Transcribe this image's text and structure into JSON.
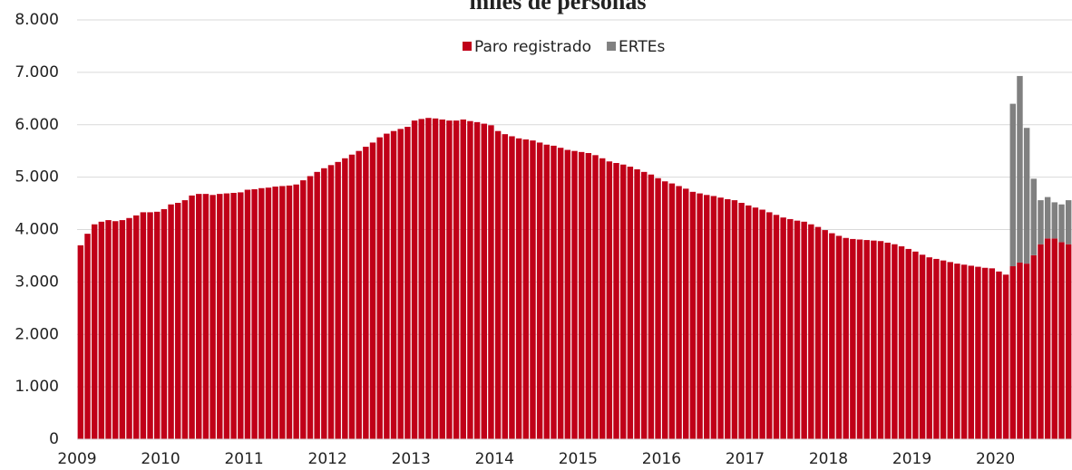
{
  "chart_data": {
    "type": "bar",
    "stacked": true,
    "title": "miles de personas",
    "categories": [
      "2009",
      null,
      null,
      null,
      null,
      null,
      null,
      null,
      null,
      null,
      null,
      null,
      "2010",
      null,
      null,
      null,
      null,
      null,
      null,
      null,
      null,
      null,
      null,
      null,
      "2011",
      null,
      null,
      null,
      null,
      null,
      null,
      null,
      null,
      null,
      null,
      null,
      "2012",
      null,
      null,
      null,
      null,
      null,
      null,
      null,
      null,
      null,
      null,
      null,
      "2013",
      null,
      null,
      null,
      null,
      null,
      null,
      null,
      null,
      null,
      null,
      null,
      "2014",
      null,
      null,
      null,
      null,
      null,
      null,
      null,
      null,
      null,
      null,
      null,
      "2015",
      null,
      null,
      null,
      null,
      null,
      null,
      null,
      null,
      null,
      null,
      null,
      "2016",
      null,
      null,
      null,
      null,
      null,
      null,
      null,
      null,
      null,
      null,
      null,
      "2017",
      null,
      null,
      null,
      null,
      null,
      null,
      null,
      null,
      null,
      null,
      null,
      "2018",
      null,
      null,
      null,
      null,
      null,
      null,
      null,
      null,
      null,
      null,
      null,
      "2019",
      null,
      null,
      null,
      null,
      null,
      null,
      null,
      null,
      null,
      null,
      null,
      "2020",
      null,
      null,
      null,
      null,
      null,
      null,
      null,
      null,
      null,
      null
    ],
    "series": [
      {
        "name": "Paro registrado",
        "color": "#c00018",
        "values": [
          3700,
          3920,
          4100,
          4150,
          4180,
          4160,
          4180,
          4220,
          4270,
          4330,
          4330,
          4340,
          4390,
          4480,
          4510,
          4560,
          4650,
          4680,
          4680,
          4660,
          4680,
          4690,
          4700,
          4710,
          4760,
          4770,
          4790,
          4800,
          4820,
          4830,
          4840,
          4860,
          4940,
          5020,
          5100,
          5170,
          5230,
          5290,
          5360,
          5430,
          5500,
          5580,
          5660,
          5760,
          5830,
          5880,
          5920,
          5960,
          6080,
          6110,
          6130,
          6120,
          6100,
          6080,
          6080,
          6100,
          6070,
          6050,
          6020,
          5990,
          5880,
          5820,
          5780,
          5740,
          5720,
          5700,
          5660,
          5620,
          5600,
          5560,
          5520,
          5500,
          5480,
          5460,
          5420,
          5360,
          5300,
          5270,
          5240,
          5200,
          5150,
          5100,
          5050,
          4980,
          4920,
          4880,
          4830,
          4780,
          4720,
          4690,
          4660,
          4640,
          4610,
          4580,
          4560,
          4510,
          4460,
          4420,
          4380,
          4330,
          4280,
          4230,
          4200,
          4170,
          4150,
          4100,
          4050,
          3990,
          3930,
          3880,
          3840,
          3820,
          3810,
          3800,
          3790,
          3780,
          3750,
          3720,
          3680,
          3630,
          3580,
          3520,
          3470,
          3440,
          3410,
          3380,
          3350,
          3330,
          3310,
          3290,
          3270,
          3260,
          3200,
          3140,
          3300,
          3370,
          3350,
          3510,
          3720,
          3830,
          3830,
          3760,
          3720
        ]
      },
      {
        "name": "ERTEs",
        "color": "#808080",
        "values": [
          null,
          null,
          null,
          null,
          null,
          null,
          null,
          null,
          null,
          null,
          null,
          null,
          null,
          null,
          null,
          null,
          null,
          null,
          null,
          null,
          null,
          null,
          null,
          null,
          null,
          null,
          null,
          null,
          null,
          null,
          null,
          null,
          null,
          null,
          null,
          null,
          null,
          null,
          null,
          null,
          null,
          null,
          null,
          null,
          null,
          null,
          null,
          null,
          null,
          null,
          null,
          null,
          null,
          null,
          null,
          null,
          null,
          null,
          null,
          null,
          null,
          null,
          null,
          null,
          null,
          null,
          null,
          null,
          null,
          null,
          null,
          null,
          null,
          null,
          null,
          null,
          null,
          null,
          null,
          null,
          null,
          null,
          null,
          null,
          null,
          null,
          null,
          null,
          null,
          null,
          null,
          null,
          null,
          null,
          null,
          null,
          null,
          null,
          null,
          null,
          null,
          null,
          null,
          null,
          null,
          null,
          null,
          null,
          null,
          null,
          null,
          null,
          null,
          null,
          null,
          null,
          null,
          null,
          null,
          null,
          null,
          null,
          null,
          null,
          null,
          null,
          null,
          null,
          null,
          null,
          null,
          null,
          null,
          null,
          3100,
          3560,
          2590,
          1460,
          840,
          790,
          690,
          720,
          840
        ]
      }
    ],
    "ylim": [
      0,
      8000
    ],
    "yticks": [
      0,
      {
        "value": 1000,
        "label": "1.000"
      },
      {
        "value": 2000,
        "label": "2.000"
      },
      {
        "value": 3000,
        "label": "3.000"
      },
      {
        "value": 4000,
        "label": "4.000"
      },
      {
        "value": 5000,
        "label": "5.000"
      },
      {
        "value": 6000,
        "label": "6.000"
      },
      {
        "value": 7000,
        "label": "7.000"
      },
      {
        "value": 8000,
        "label": "8.000"
      }
    ],
    "grid": true,
    "legend": "top"
  }
}
